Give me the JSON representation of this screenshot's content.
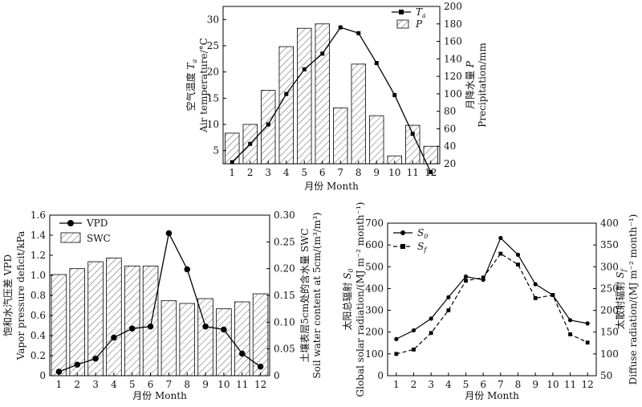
{
  "figure": {
    "hatch_color": "#333333",
    "line_color": "#000000",
    "bar_fill": "#ffffff"
  },
  "chart_data": [
    {
      "type": "bar",
      "id": "top",
      "categories": [
        "1",
        "2",
        "3",
        "4",
        "5",
        "6",
        "7",
        "8",
        "9",
        "10",
        "11",
        "12"
      ],
      "xlabel": "月份 Month",
      "ylabel_left": [
        "空气温度 Ta",
        "Air temperature/°C"
      ],
      "ylabel_left_zh": "空气温度 ",
      "ylabel_left_sym": "T",
      "ylabel_left_sub": "a",
      "ylabel_left_en": "Air temperature/°C",
      "ylabel_right_zh": "月降水量 ",
      "ylabel_right_sym": "P",
      "ylabel_right_en": "Precipitation/mm",
      "ylim_left": [
        2.5,
        32.5
      ],
      "yticks_left": [
        5,
        10,
        15,
        20,
        25,
        30
      ],
      "ylim_right": [
        20,
        200
      ],
      "yticks_right": [
        20,
        40,
        60,
        80,
        100,
        120,
        140,
        160,
        180,
        200
      ],
      "series": [
        {
          "name": "Ta",
          "legend_sym": "T",
          "legend_sub": "a",
          "axis": "left",
          "kind": "line",
          "marker": "square",
          "values": [
            2.8,
            6.3,
            10.0,
            15.8,
            20.5,
            23.5,
            28.5,
            27.4,
            21.7,
            15.6,
            8.2,
            0.9
          ]
        },
        {
          "name": "P",
          "legend_sym": "P",
          "axis": "right",
          "kind": "bar",
          "values": [
            55,
            65,
            104,
            154,
            175,
            180,
            84,
            134,
            75,
            29,
            64,
            40
          ]
        }
      ]
    },
    {
      "type": "bar",
      "id": "bottom-left",
      "categories": [
        "1",
        "2",
        "3",
        "4",
        "5",
        "6",
        "7",
        "8",
        "9",
        "10",
        "11",
        "12"
      ],
      "xlabel": "月份 Month",
      "ylabel_left_zh": "饱和水汽压差 VPD",
      "ylabel_left_en": "Vapor pressure deficit/kPa",
      "ylabel_right_zh": "土壤表层5cm处的含水量 SWC",
      "ylabel_right_en": "Soil water content at 5cm/(m³/m³)",
      "ylim_left": [
        0,
        1.6
      ],
      "yticks_left": [
        "0",
        "0.2",
        "0.4",
        "0.6",
        "0.8",
        "1.0",
        "1.2",
        "1.4",
        "1.6"
      ],
      "ylim_right": [
        0,
        0.3
      ],
      "yticks_right": [
        "0",
        "0.05",
        "0.10",
        "0.15",
        "0.20",
        "0.25",
        "0.30"
      ],
      "series": [
        {
          "name": "VPD",
          "axis": "left",
          "kind": "line",
          "marker": "circle",
          "values": [
            0.04,
            0.11,
            0.17,
            0.38,
            0.47,
            0.49,
            1.42,
            1.06,
            0.49,
            0.46,
            0.22,
            0.09
          ]
        },
        {
          "name": "SWC",
          "axis": "right",
          "kind": "bar",
          "values": [
            0.189,
            0.2,
            0.213,
            0.22,
            0.205,
            0.205,
            0.14,
            0.135,
            0.144,
            0.125,
            0.138,
            0.153
          ]
        }
      ]
    },
    {
      "type": "line",
      "id": "bottom-right",
      "categories": [
        "1",
        "2",
        "3",
        "4",
        "5",
        "6",
        "7",
        "8",
        "9",
        "10",
        "11",
        "12"
      ],
      "xlabel": "月份 Month",
      "ylabel_left_zh": "太阳总辐射 ",
      "ylabel_left_sym": "S",
      "ylabel_left_sub": "0",
      "ylabel_left_en": "Global solar radiation/(MJ m⁻² month⁻¹)",
      "ylabel_right_zh": "太散射辐射 ",
      "ylabel_right_sym": "S",
      "ylabel_right_sub": "f",
      "ylabel_right_en": "Diffuse radiation/(MJ m⁻² month⁻¹)",
      "ylim_left": [
        0,
        700
      ],
      "yticks_left": [
        "0",
        "100",
        "200",
        "300",
        "400",
        "500",
        "600",
        "700"
      ],
      "ylim_right": [
        50,
        400
      ],
      "yticks_right": [
        "50",
        "100",
        "150",
        "200",
        "250",
        "300",
        "350",
        "400"
      ],
      "series": [
        {
          "name": "S0",
          "legend_sym": "S",
          "legend_sub": "0",
          "axis": "left",
          "kind": "line",
          "marker": "circle",
          "dash": false,
          "values": [
            168,
            208,
            262,
            360,
            455,
            440,
            632,
            555,
            420,
            370,
            255,
            240
          ]
        },
        {
          "name": "Sf",
          "legend_sym": "S",
          "legend_sub": "f",
          "axis": "right",
          "kind": "line",
          "marker": "square",
          "dash": true,
          "values": [
            100,
            110,
            148,
            200,
            268,
            275,
            330,
            305,
            228,
            235,
            145,
            126
          ]
        }
      ]
    }
  ]
}
